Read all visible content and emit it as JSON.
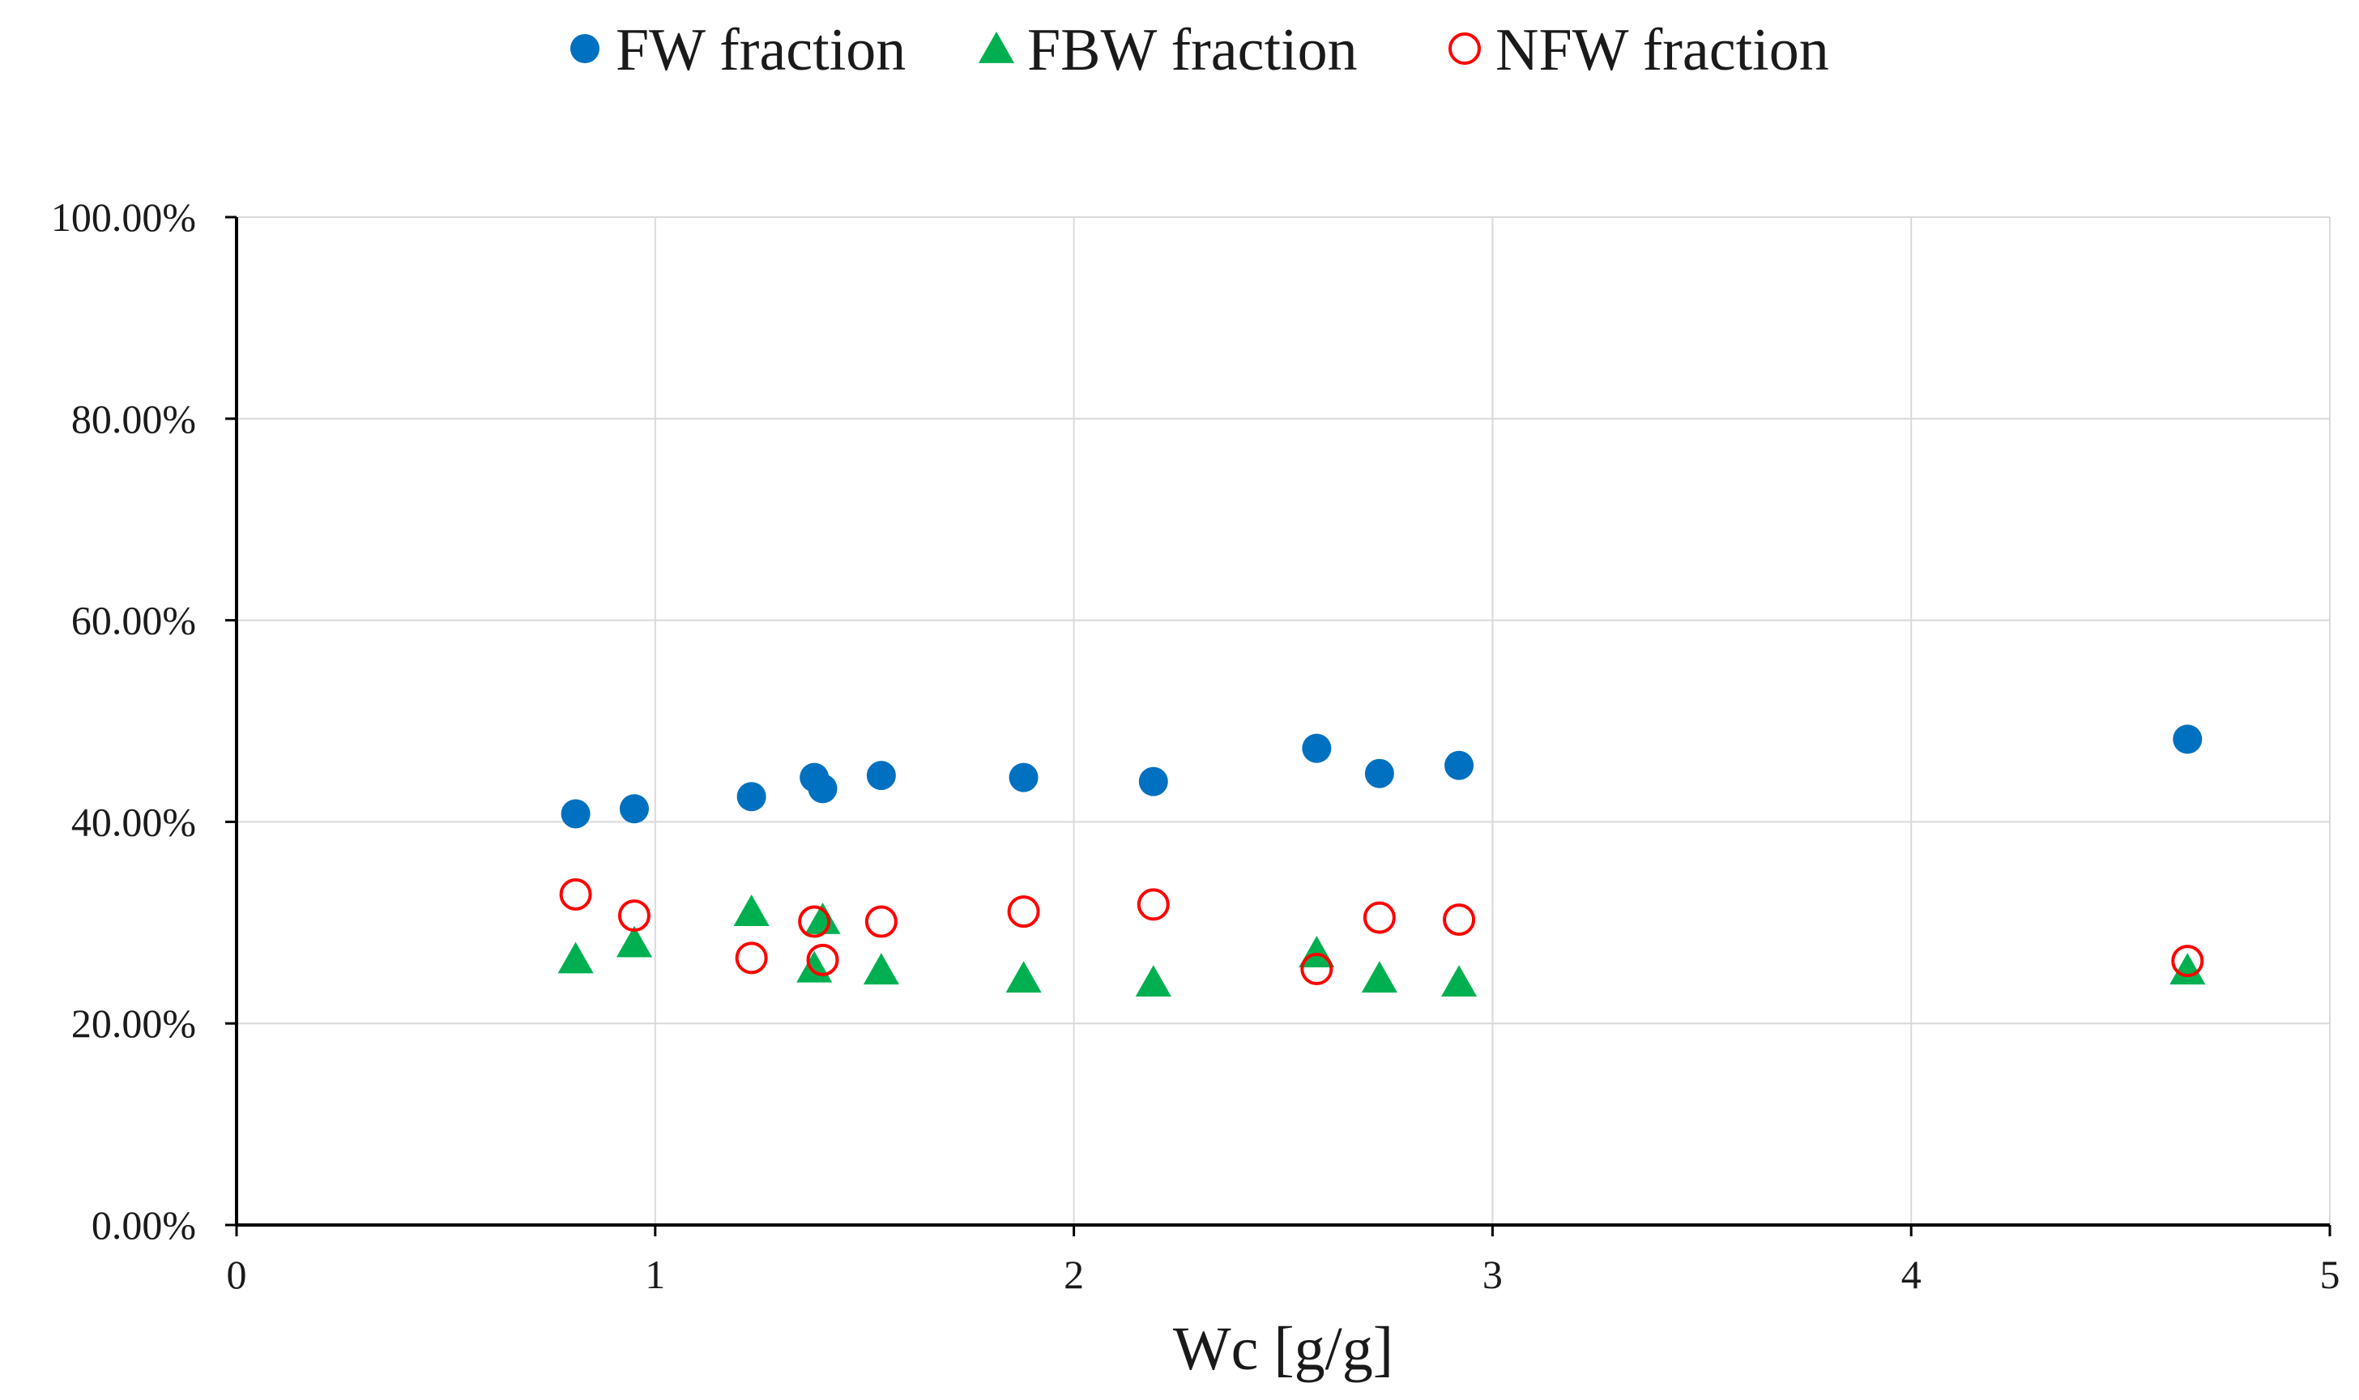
{
  "chart_data": {
    "type": "scatter",
    "title": "",
    "xlabel": "Wc [g/g]",
    "ylabel": "",
    "xlim": [
      0,
      5
    ],
    "ylim": [
      0,
      1
    ],
    "grid": true,
    "legend_position": "top",
    "x_ticks": [
      {
        "value": 0,
        "label": "0"
      },
      {
        "value": 1,
        "label": "1"
      },
      {
        "value": 2,
        "label": "2"
      },
      {
        "value": 3,
        "label": "3"
      },
      {
        "value": 4,
        "label": "4"
      },
      {
        "value": 5,
        "label": "5"
      }
    ],
    "y_ticks": [
      {
        "value": 0,
        "label": "0.00%"
      },
      {
        "value": 0.2,
        "label": "20.00%"
      },
      {
        "value": 0.4,
        "label": "40.00%"
      },
      {
        "value": 0.6,
        "label": "60.00%"
      },
      {
        "value": 0.8,
        "label": "80.00%"
      },
      {
        "value": 1,
        "label": "100.00%"
      }
    ],
    "series": [
      {
        "name": "FW fraction",
        "marker": "filled-circle",
        "color": "#0070C0",
        "x": [
          0.81,
          0.95,
          1.23,
          1.38,
          1.4,
          1.54,
          1.88,
          2.19,
          2.58,
          2.73,
          2.92,
          4.66
        ],
        "y": [
          0.408,
          0.413,
          0.425,
          0.444,
          0.433,
          0.446,
          0.444,
          0.44,
          0.473,
          0.448,
          0.456,
          0.482
        ]
      },
      {
        "name": "FBW fraction",
        "marker": "filled-triangle",
        "color": "#00B050",
        "x": [
          0.81,
          0.95,
          1.23,
          1.38,
          1.4,
          1.54,
          1.88,
          2.19,
          2.58,
          2.73,
          2.92,
          4.66
        ],
        "y": [
          0.264,
          0.28,
          0.311,
          0.255,
          0.303,
          0.253,
          0.245,
          0.241,
          0.27,
          0.245,
          0.241,
          0.253
        ]
      },
      {
        "name": "NFW fraction",
        "marker": "open-circle",
        "color": "#FF0000",
        "x": [
          0.81,
          0.95,
          1.23,
          1.38,
          1.4,
          1.54,
          1.88,
          2.19,
          2.58,
          2.73,
          2.92,
          4.66
        ],
        "y": [
          0.328,
          0.307,
          0.265,
          0.301,
          0.263,
          0.301,
          0.311,
          0.318,
          0.254,
          0.305,
          0.303,
          0.262
        ]
      }
    ]
  }
}
